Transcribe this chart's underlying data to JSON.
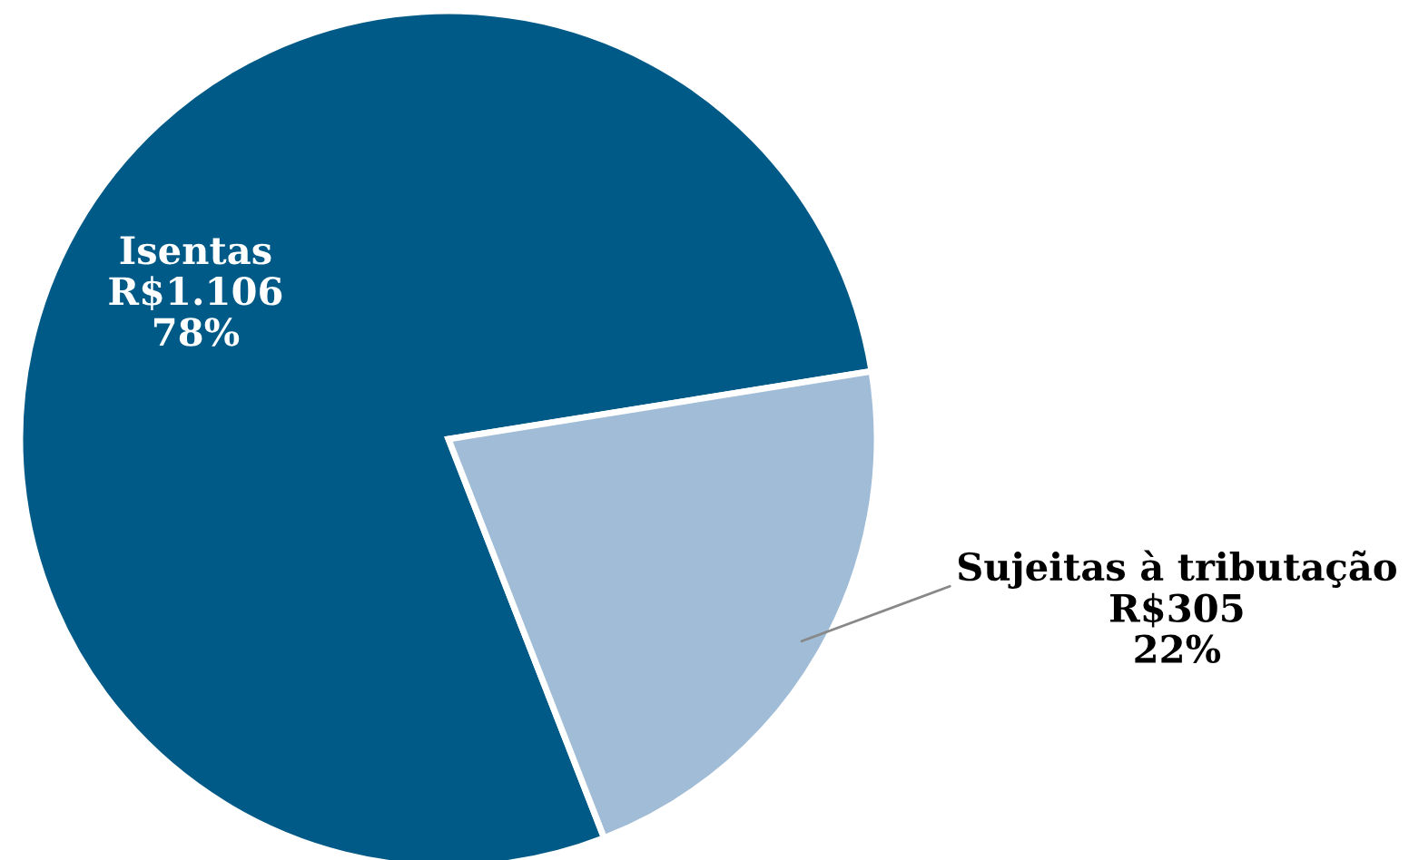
{
  "chart_data": {
    "type": "pie",
    "categories": [
      "Isentas",
      "Sujeitas à tributação"
    ],
    "values": [
      1106,
      305
    ],
    "colors": [
      "#005a87",
      "#a0bcd6"
    ],
    "value_labels": [
      "R$1.106\n78%",
      "R$305\n22%"
    ]
  }
}
